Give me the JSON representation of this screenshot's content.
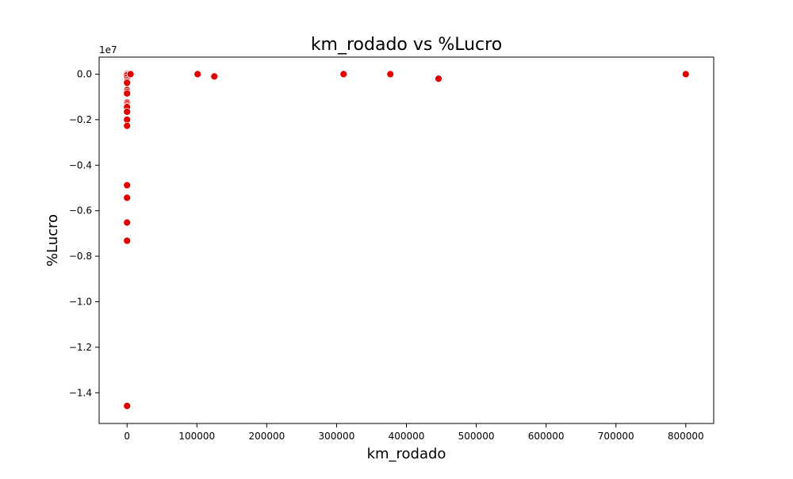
{
  "chart_data": {
    "type": "scatter",
    "title": "km_rodado vs %Lucro",
    "xlabel": "km_rodado",
    "ylabel": "%Lucro",
    "y_offset_label": "1e7",
    "xlim": [
      -40000,
      840000
    ],
    "ylim": [
      -15350000,
      750000
    ],
    "x_ticks": [
      0,
      100000,
      200000,
      300000,
      400000,
      500000,
      600000,
      700000,
      800000
    ],
    "x_tick_labels": [
      "0",
      "100000",
      "200000",
      "300000",
      "400000",
      "500000",
      "600000",
      "700000",
      "800000"
    ],
    "y_ticks": [
      0,
      -2000000,
      -4000000,
      -6000000,
      -8000000,
      -10000000,
      -12000000,
      -14000000
    ],
    "y_tick_labels": [
      "0.0",
      "−0.2",
      "−0.4",
      "−0.6",
      "−0.8",
      "−1.0",
      "−1.2",
      "−1.4"
    ],
    "grid": false,
    "marker_color": "#e00000",
    "marker_edge_color": "#ffffff",
    "points": [
      {
        "x": 0,
        "y": 0
      },
      {
        "x": 0,
        "y": -50000
      },
      {
        "x": 0,
        "y": -150000
      },
      {
        "x": 0,
        "y": -250000
      },
      {
        "x": 0,
        "y": -320000
      },
      {
        "x": 0,
        "y": -380000
      },
      {
        "x": 0,
        "y": -700000
      },
      {
        "x": 0,
        "y": -780000
      },
      {
        "x": 0,
        "y": -850000
      },
      {
        "x": 0,
        "y": -1250000
      },
      {
        "x": 0,
        "y": -1320000
      },
      {
        "x": 0,
        "y": -1400000
      },
      {
        "x": 0,
        "y": -1450000
      },
      {
        "x": 0,
        "y": -1650000
      },
      {
        "x": 0,
        "y": -2000000
      },
      {
        "x": 0,
        "y": -2270000
      },
      {
        "x": 0,
        "y": -4880000
      },
      {
        "x": 0,
        "y": -5430000
      },
      {
        "x": 0,
        "y": -6520000
      },
      {
        "x": 0,
        "y": -7320000
      },
      {
        "x": 0,
        "y": -14580000
      },
      {
        "x": 5000,
        "y": 0
      },
      {
        "x": 101000,
        "y": 0
      },
      {
        "x": 125000,
        "y": -100000
      },
      {
        "x": 310000,
        "y": 0
      },
      {
        "x": 377000,
        "y": 0
      },
      {
        "x": 446000,
        "y": -200000
      },
      {
        "x": 800000,
        "y": 0
      }
    ]
  }
}
